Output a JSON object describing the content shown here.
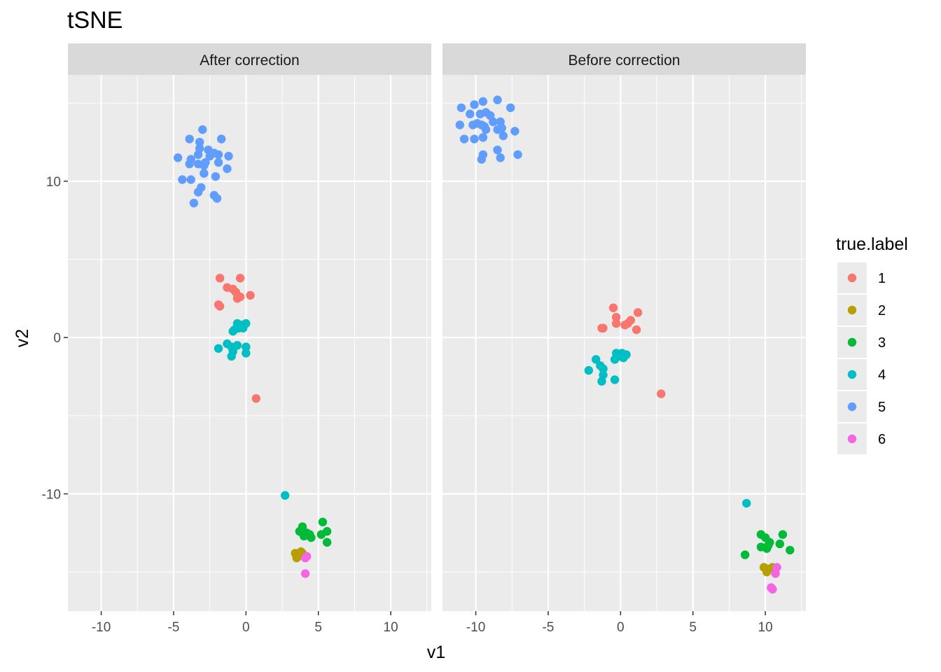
{
  "chart_data": {
    "type": "scatter",
    "title": "tSNE",
    "xlabel": "v1",
    "ylabel": "v2",
    "xlim": [
      -12.3,
      12.8
    ],
    "ylim": [
      -17.5,
      16.8
    ],
    "x_ticks": [
      -10,
      -5,
      0,
      5,
      10
    ],
    "x_tick_labels": [
      "-10",
      "-5",
      "0",
      "5",
      "10"
    ],
    "y_ticks": [
      -10,
      0,
      10
    ],
    "y_tick_labels": [
      "-10",
      "0",
      "10"
    ],
    "grid": true,
    "legend": {
      "title": "true.label",
      "placement": "right",
      "entries": [
        {
          "label": "1",
          "color": "#F8766D"
        },
        {
          "label": "2",
          "color": "#B79F00"
        },
        {
          "label": "3",
          "color": "#00BA38"
        },
        {
          "label": "4",
          "color": "#00BFC4"
        },
        {
          "label": "5",
          "color": "#619CFF"
        },
        {
          "label": "6",
          "color": "#F564E3"
        }
      ]
    },
    "panels": [
      {
        "label": "After correction",
        "series": [
          {
            "name": "1",
            "points": [
              [
                -1.8,
                3.8
              ],
              [
                -0.4,
                3.8
              ],
              [
                -1.3,
                3.2
              ],
              [
                -0.9,
                3.1
              ],
              [
                -0.7,
                2.9
              ],
              [
                0.3,
                2.7
              ],
              [
                -0.4,
                2.6
              ],
              [
                -0.6,
                2.5
              ],
              [
                -1.9,
                2.1
              ],
              [
                -1.8,
                2.0
              ],
              [
                0.7,
                -3.9
              ]
            ]
          },
          {
            "name": "2",
            "points": [
              [
                3.4,
                -13.8
              ],
              [
                3.6,
                -13.9
              ],
              [
                3.8,
                -13.7
              ],
              [
                3.5,
                -14.1
              ],
              [
                3.9,
                -13.8
              ],
              [
                3.6,
                -14.0
              ]
            ]
          },
          {
            "name": "3",
            "points": [
              [
                5.3,
                -11.8
              ],
              [
                3.9,
                -12.1
              ],
              [
                3.7,
                -12.4
              ],
              [
                4.2,
                -12.5
              ],
              [
                4.4,
                -12.6
              ],
              [
                5.6,
                -12.4
              ],
              [
                5.2,
                -12.6
              ],
              [
                4.0,
                -12.7
              ],
              [
                4.5,
                -12.8
              ],
              [
                5.6,
                -13.1
              ]
            ]
          },
          {
            "name": "4",
            "points": [
              [
                -0.6,
                0.9
              ],
              [
                0.0,
                0.9
              ],
              [
                -0.3,
                0.8
              ],
              [
                -0.5,
                0.6
              ],
              [
                -0.2,
                0.6
              ],
              [
                -0.8,
                0.5
              ],
              [
                -0.9,
                0.4
              ],
              [
                -1.3,
                -0.4
              ],
              [
                -0.6,
                -0.5
              ],
              [
                0.0,
                -0.6
              ],
              [
                -1.0,
                -0.6
              ],
              [
                -1.9,
                -0.7
              ],
              [
                -0.9,
                -0.9
              ],
              [
                0.0,
                -1.0
              ],
              [
                -1.0,
                -1.2
              ],
              [
                2.7,
                -10.1
              ]
            ]
          },
          {
            "name": "5",
            "points": [
              [
                -3.0,
                13.3
              ],
              [
                -3.9,
                12.7
              ],
              [
                -1.7,
                12.7
              ],
              [
                -3.2,
                12.5
              ],
              [
                -3.2,
                12.1
              ],
              [
                -2.6,
                12.0
              ],
              [
                -2.2,
                11.8
              ],
              [
                -3.3,
                11.7
              ],
              [
                -1.9,
                11.7
              ],
              [
                -1.2,
                11.6
              ],
              [
                -2.5,
                11.6
              ],
              [
                -4.7,
                11.5
              ],
              [
                -3.8,
                11.4
              ],
              [
                -2.8,
                11.2
              ],
              [
                -1.9,
                11.2
              ],
              [
                -3.3,
                11.1
              ],
              [
                -3.9,
                11.1
              ],
              [
                -2.9,
                11.0
              ],
              [
                -1.3,
                10.8
              ],
              [
                -2.9,
                10.5
              ],
              [
                -2.1,
                10.3
              ],
              [
                -4.4,
                10.1
              ],
              [
                -3.8,
                10.1
              ],
              [
                -3.1,
                9.6
              ],
              [
                -3.3,
                9.3
              ],
              [
                -2.2,
                9.1
              ],
              [
                -2.0,
                8.9
              ],
              [
                -3.6,
                8.6
              ]
            ]
          },
          {
            "name": "6",
            "points": [
              [
                4.1,
                -14.1
              ],
              [
                4.2,
                -14.0
              ],
              [
                4.1,
                -15.1
              ]
            ]
          }
        ]
      },
      {
        "label": "Before correction",
        "series": [
          {
            "name": "1",
            "points": [
              [
                -0.5,
                1.9
              ],
              [
                1.2,
                1.6
              ],
              [
                -0.3,
                1.3
              ],
              [
                0.7,
                1.1
              ],
              [
                -0.3,
                0.9
              ],
              [
                0.5,
                0.9
              ],
              [
                0.3,
                0.8
              ],
              [
                -1.2,
                0.6
              ],
              [
                -1.3,
                0.6
              ],
              [
                1.1,
                0.5
              ],
              [
                2.8,
                -3.6
              ]
            ]
          },
          {
            "name": "2",
            "points": [
              [
                9.9,
                -14.7
              ],
              [
                10.2,
                -14.8
              ],
              [
                10.5,
                -14.7
              ],
              [
                10.1,
                -15.0
              ]
            ]
          },
          {
            "name": "3",
            "points": [
              [
                9.7,
                -12.6
              ],
              [
                10.0,
                -12.8
              ],
              [
                11.2,
                -12.6
              ],
              [
                10.3,
                -13.1
              ],
              [
                10.2,
                -13.3
              ],
              [
                11.0,
                -13.2
              ],
              [
                9.7,
                -13.4
              ],
              [
                10.1,
                -13.5
              ],
              [
                11.7,
                -13.6
              ],
              [
                8.6,
                -13.9
              ]
            ]
          },
          {
            "name": "4",
            "points": [
              [
                -0.3,
                -1.0
              ],
              [
                0.1,
                -1.0
              ],
              [
                0.4,
                -1.1
              ],
              [
                -0.1,
                -1.2
              ],
              [
                0.2,
                -1.3
              ],
              [
                -0.4,
                -1.4
              ],
              [
                -1.7,
                -1.4
              ],
              [
                -1.4,
                -1.8
              ],
              [
                -1.2,
                -2.0
              ],
              [
                -2.2,
                -2.1
              ],
              [
                -1.2,
                -2.4
              ],
              [
                -0.4,
                -2.7
              ],
              [
                -1.3,
                -2.8
              ],
              [
                8.7,
                -10.6
              ]
            ]
          },
          {
            "name": "5",
            "points": [
              [
                -8.5,
                15.2
              ],
              [
                -9.5,
                15.1
              ],
              [
                -10.1,
                14.9
              ],
              [
                -11.0,
                14.7
              ],
              [
                -7.6,
                14.7
              ],
              [
                -9.3,
                14.4
              ],
              [
                -10.4,
                14.3
              ],
              [
                -9.7,
                14.3
              ],
              [
                -9.0,
                14.2
              ],
              [
                -8.8,
                13.8
              ],
              [
                -8.3,
                13.8
              ],
              [
                -9.9,
                13.7
              ],
              [
                -10.2,
                13.6
              ],
              [
                -11.1,
                13.6
              ],
              [
                -9.6,
                13.6
              ],
              [
                -9.4,
                13.5
              ],
              [
                -8.2,
                13.4
              ],
              [
                -9.3,
                13.3
              ],
              [
                -8.5,
                13.3
              ],
              [
                -7.3,
                13.2
              ],
              [
                -8.1,
                12.9
              ],
              [
                -10.8,
                12.7
              ],
              [
                -10.1,
                12.7
              ],
              [
                -9.5,
                12.8
              ],
              [
                -8.5,
                12.0
              ],
              [
                -7.1,
                11.7
              ],
              [
                -9.5,
                11.7
              ],
              [
                -9.6,
                11.4
              ],
              [
                -8.3,
                11.5
              ]
            ]
          },
          {
            "name": "6",
            "points": [
              [
                10.8,
                -14.7
              ],
              [
                10.7,
                -15.1
              ],
              [
                10.4,
                -16.0
              ],
              [
                10.5,
                -16.1
              ]
            ]
          }
        ]
      }
    ]
  }
}
